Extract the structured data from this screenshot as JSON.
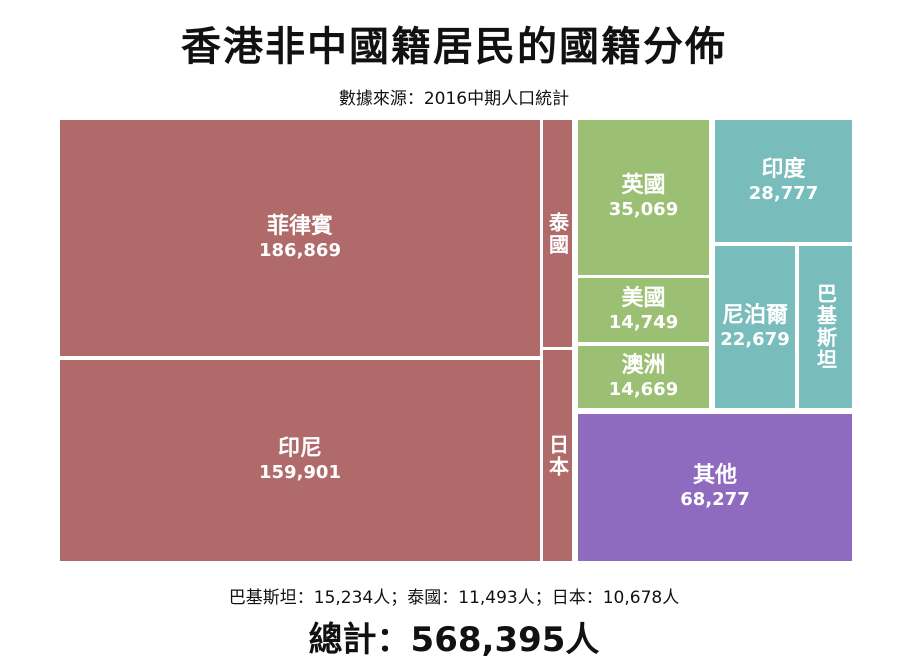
{
  "title": "香港非中國籍居民的國籍分佈",
  "subtitle": "數據來源：2016中期人口統計",
  "footnote": "巴基斯坦：15,234人；泰國：11,493人；日本：10,678人",
  "total": "總計：568,395人",
  "colors": {
    "asia_major": "#b06a6a",
    "western": "#9bbf73",
    "south_asia": "#79bcbc",
    "other": "#8e6bbf"
  },
  "chart_data": {
    "type": "treemap",
    "title": "香港非中國籍居民的國籍分佈",
    "total": 568395,
    "items": [
      {
        "name": "菲律賓",
        "value": 186869,
        "label": "186,869",
        "color": "#b06a6a"
      },
      {
        "name": "印尼",
        "value": 159901,
        "label": "159,901",
        "color": "#b06a6a"
      },
      {
        "name": "泰國",
        "value": 11493,
        "label": "11,493",
        "color": "#b06a6a"
      },
      {
        "name": "日本",
        "value": 10678,
        "label": "10,678",
        "color": "#b06a6a"
      },
      {
        "name": "英國",
        "value": 35069,
        "label": "35,069",
        "color": "#9bbf73"
      },
      {
        "name": "美國",
        "value": 14749,
        "label": "14,749",
        "color": "#9bbf73"
      },
      {
        "name": "澳洲",
        "value": 14669,
        "label": "14,669",
        "color": "#9bbf73"
      },
      {
        "name": "印度",
        "value": 28777,
        "label": "28,777",
        "color": "#79bcbc"
      },
      {
        "name": "尼泊爾",
        "value": 22679,
        "label": "22,679",
        "color": "#79bcbc"
      },
      {
        "name": "巴基斯坦",
        "value": 15234,
        "label": "15,234",
        "color": "#79bcbc"
      },
      {
        "name": "其他",
        "value": 68277,
        "label": "68,277",
        "color": "#8e6bbf"
      }
    ]
  }
}
